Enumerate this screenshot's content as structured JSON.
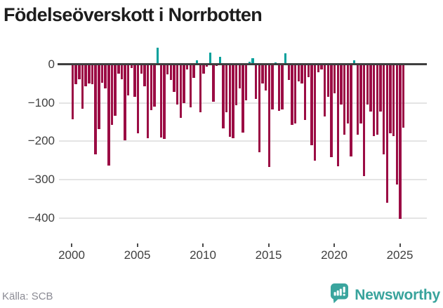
{
  "title": "Födelseöverskott i Norrbotten",
  "source": "Källa: SCB",
  "brand": {
    "name": "Newsworthy",
    "icon": "newsworthy-speech-bubble-chart-icon",
    "color": "#3aa59e"
  },
  "colors": {
    "negative_bar": "#9b0c44",
    "positive_bar": "#00a09b",
    "zero_axis": "#3f3f3f",
    "gridline": "#e4e4e4",
    "tick_label": "#404040",
    "source_text": "#8b8b94"
  },
  "chart_data": {
    "type": "bar",
    "title": "Födelseöverskott i Norrbotten",
    "xlabel": "",
    "ylabel": "",
    "grid": true,
    "legend": "none",
    "ylim": [
      -440,
      50
    ],
    "yticks": [
      {
        "label": "0",
        "value": 0
      },
      {
        "label": "−100",
        "value": -100
      },
      {
        "label": "−200",
        "value": -200
      },
      {
        "label": "−300",
        "value": -300
      },
      {
        "label": "−400",
        "value": -400
      }
    ],
    "xticks": [
      {
        "label": "2000",
        "year": 2000
      },
      {
        "label": "2005",
        "year": 2005
      },
      {
        "label": "2010",
        "year": 2010
      },
      {
        "label": "2015",
        "year": 2015
      },
      {
        "label": "2020",
        "year": 2020
      },
      {
        "label": "2025",
        "year": 2025
      }
    ],
    "x": [
      "2000 Q1",
      "2000 Q2",
      "2000 Q3",
      "2000 Q4",
      "2001 Q1",
      "2001 Q2",
      "2001 Q3",
      "2001 Q4",
      "2002 Q1",
      "2002 Q2",
      "2002 Q3",
      "2002 Q4",
      "2003 Q1",
      "2003 Q2",
      "2003 Q3",
      "2003 Q4",
      "2004 Q1",
      "2004 Q2",
      "2004 Q3",
      "2004 Q4",
      "2005 Q1",
      "2005 Q2",
      "2005 Q3",
      "2005 Q4",
      "2006 Q1",
      "2006 Q2",
      "2006 Q3",
      "2006 Q4",
      "2007 Q1",
      "2007 Q2",
      "2007 Q3",
      "2007 Q4",
      "2008 Q1",
      "2008 Q2",
      "2008 Q3",
      "2008 Q4",
      "2009 Q1",
      "2009 Q2",
      "2009 Q3",
      "2009 Q4",
      "2010 Q1",
      "2010 Q2",
      "2010 Q3",
      "2010 Q4",
      "2011 Q1",
      "2011 Q2",
      "2011 Q3",
      "2011 Q4",
      "2012 Q1",
      "2012 Q2",
      "2012 Q3",
      "2012 Q4",
      "2013 Q1",
      "2013 Q2",
      "2013 Q3",
      "2013 Q4",
      "2014 Q1",
      "2014 Q2",
      "2014 Q3",
      "2014 Q4",
      "2015 Q1",
      "2015 Q2",
      "2015 Q3",
      "2015 Q4",
      "2016 Q1",
      "2016 Q2",
      "2016 Q3",
      "2016 Q4",
      "2017 Q1",
      "2017 Q2",
      "2017 Q3",
      "2017 Q4",
      "2018 Q1",
      "2018 Q2",
      "2018 Q3",
      "2018 Q4",
      "2019 Q1",
      "2019 Q2",
      "2019 Q3",
      "2019 Q4",
      "2020 Q1",
      "2020 Q2",
      "2020 Q3",
      "2020 Q4",
      "2021 Q1",
      "2021 Q2",
      "2021 Q3",
      "2021 Q4",
      "2022 Q1",
      "2022 Q2",
      "2022 Q3",
      "2022 Q4",
      "2023 Q1",
      "2023 Q2",
      "2023 Q3",
      "2023 Q4",
      "2024 Q1",
      "2024 Q2",
      "2024 Q3",
      "2024 Q4",
      "2025 Q1",
      "2025 Q2"
    ],
    "values": [
      -143,
      -52,
      -38,
      -115,
      -57,
      -49,
      -52,
      -234,
      -168,
      -47,
      -63,
      -264,
      -158,
      -134,
      -23,
      -38,
      -198,
      -81,
      -10,
      -84,
      -180,
      -23,
      -56,
      -192,
      -118,
      -109,
      42,
      -190,
      -193,
      -26,
      -41,
      -72,
      -105,
      -139,
      -100,
      -13,
      -112,
      -35,
      10,
      -124,
      -23,
      -5,
      29,
      -97,
      -3,
      19,
      -167,
      -124,
      -189,
      -192,
      -106,
      -63,
      -177,
      -94,
      6,
      14,
      -89,
      -229,
      -49,
      -67,
      -267,
      -117,
      4,
      -120,
      -117,
      27,
      -40,
      -157,
      -153,
      -43,
      -49,
      -144,
      -33,
      -211,
      -250,
      -21,
      -12,
      -135,
      -85,
      -241,
      -75,
      -266,
      -105,
      -183,
      -153,
      -240,
      9,
      -183,
      -153,
      -290,
      -105,
      -122,
      -186,
      -183,
      -122,
      -235,
      -360,
      -180,
      -186,
      -313,
      -403,
      -165
    ]
  }
}
